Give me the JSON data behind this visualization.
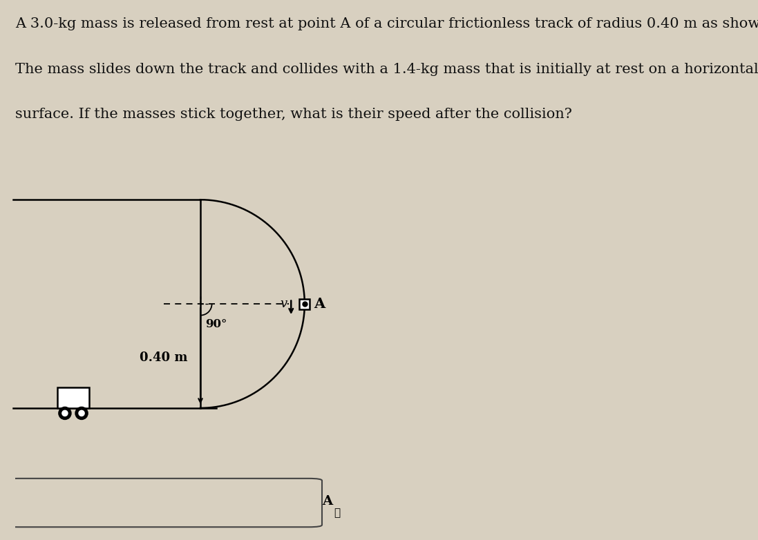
{
  "line1": "A 3.0-kg mass is released from rest at point A of a circular frictionless track of radius 0.40 m as shown in the figure.",
  "line2": "The mass slides down the track and collides with a 1.4-kg mass that is initially at rest on a horizontal frictionless",
  "line3": "surface. If the masses stick together, what is their speed after the collision?",
  "bg_color": "#d8d0c0",
  "text_color": "#111111",
  "label_90": "90°",
  "label_radius": "0.40 m",
  "label_A": "A",
  "label_v": "v",
  "fig_width": 10.97,
  "fig_height": 7.82,
  "dpi": 100
}
